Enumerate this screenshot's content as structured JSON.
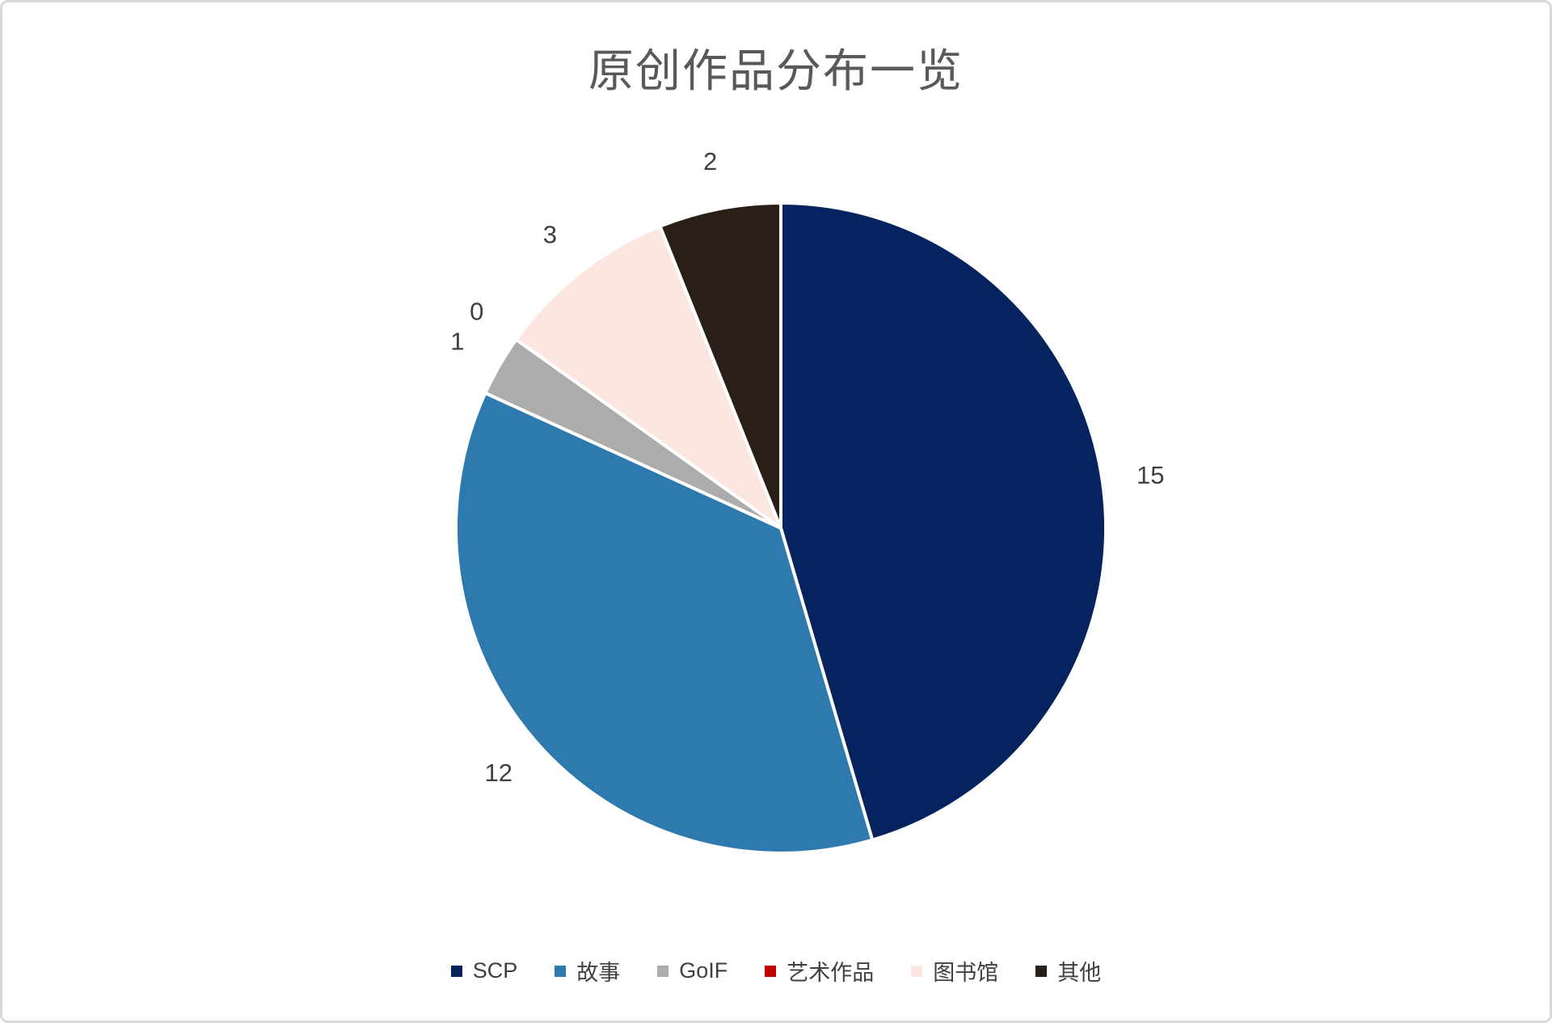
{
  "page": {
    "background": "#FFFFFF",
    "border_color": "#D9D9D9"
  },
  "chart_data": {
    "type": "pie",
    "title": "原创作品分布一览",
    "title_color": "#595959",
    "data_label_color": "#404040",
    "categories": [
      "SCP",
      "故事",
      "GoIF",
      "艺术作品",
      "图书馆",
      "其他"
    ],
    "values": [
      15,
      12,
      1,
      0,
      3,
      2
    ],
    "colors": [
      "#04235F",
      "#2E79AE",
      "#ACACAC",
      "#C00000",
      "#FBE7DF",
      "#2A1F18"
    ],
    "total": 33,
    "start_angle_deg": 0,
    "direction": "clockwise",
    "separator_color": "#FFFFFF",
    "legend_position": "bottom",
    "data_labels_position": "outside-end"
  }
}
